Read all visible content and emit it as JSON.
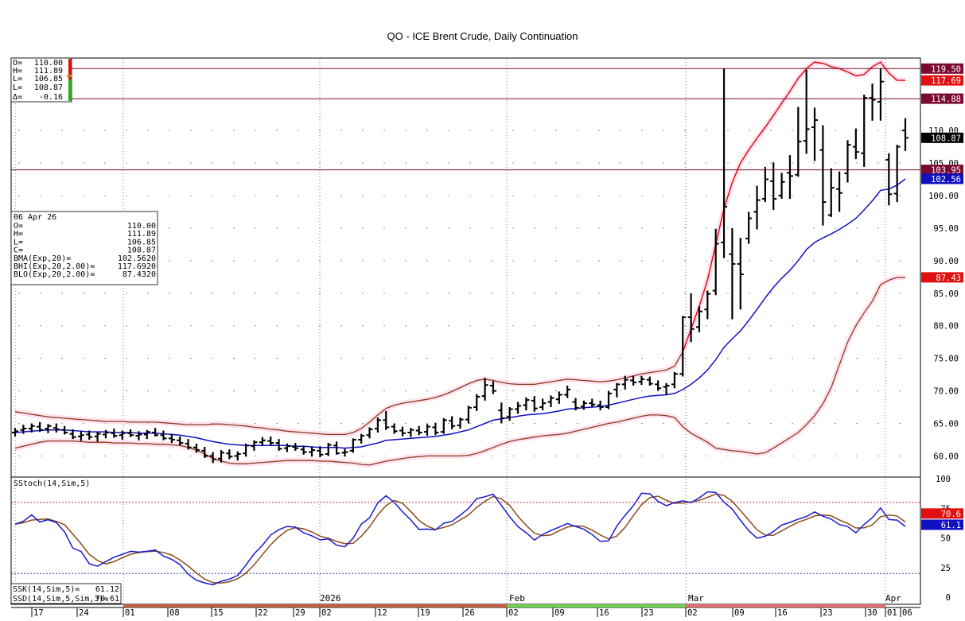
{
  "title": "QO - ICE Brent Crude, Daily Continuation",
  "ohlc_box": {
    "o_label": "O=",
    "o": "110.00",
    "h_label": "H=",
    "h": "111.89",
    "l1_label": "L=",
    "l1": "106.85",
    "l2_label": "L=",
    "l2": "108.87",
    "d_label": "Δ=",
    "d": "-0.16"
  },
  "info_box": {
    "date": "06 Apr 26",
    "rows": [
      {
        "label": "O=",
        "value": "110.00"
      },
      {
        "label": "H=",
        "value": "111.89"
      },
      {
        "label": "L=",
        "value": "106.85"
      },
      {
        "label": "C=",
        "value": "108.87"
      },
      {
        "label": "BMA(Exp,20)=",
        "value": "102.5620"
      },
      {
        "label": "BHI(Exp,20,2.00)=",
        "value": "117.6920"
      },
      {
        "label": "BLO(Exp,20,2.00)=",
        "value": "87.4320"
      }
    ]
  },
  "stoch_box": {
    "label": "SStoch(14,Sim,5)",
    "ssk_label": "SSK(14,Sim,5)=",
    "ssk": "61.12",
    "ssd_label": "SSD(14,Sim,5,Sim,3)=",
    "ssd": "70.61"
  },
  "colors": {
    "bars": "#000000",
    "band_outer_early": "#8b3a1a",
    "band_upper_late": "#e01010",
    "ma": "#1010c0",
    "ssk": "#1a1ad0",
    "ssd": "#8b4a1a",
    "hline": "#7a0a30"
  },
  "price_tags": [
    {
      "value": "119.50",
      "bg": "#7a0a30"
    },
    {
      "value": "117.69",
      "bg": "#e01010"
    },
    {
      "value": "114.88",
      "bg": "#7a0a30"
    },
    {
      "value": "108.87",
      "bg": "#000000"
    },
    {
      "value": "103.95",
      "bg": "#7a0a30"
    },
    {
      "value": "102.56",
      "bg": "#1010c0"
    },
    {
      "value": "87.43",
      "bg": "#e01010"
    }
  ],
  "stoch_tags": [
    {
      "value": "70.6",
      "bg": "#e01010"
    },
    {
      "value": "61.1",
      "bg": "#1010c0"
    }
  ],
  "y_ticks": [
    "110.00",
    "105.00",
    "100.00",
    "95.00",
    "90.00",
    "85.00",
    "80.00",
    "75.00",
    "70.00",
    "65.00",
    "60.00"
  ],
  "stoch_ticks": [
    "100",
    "75",
    "50",
    "25",
    "0"
  ],
  "x_labels": [
    "17",
    "24",
    "01",
    "08",
    "15",
    "22",
    "29",
    "02",
    "12",
    "19",
    "26",
    "02",
    "09",
    "16",
    "23",
    "02",
    "09",
    "16",
    "23",
    "30",
    "01",
    "06"
  ],
  "month_labels": [
    "2026",
    "Feb",
    "Mar",
    "Apr"
  ],
  "chart_data": {
    "type": "ohlc",
    "ylim": [
      57,
      121
    ],
    "hlines": [
      119.5,
      114.88,
      103.95
    ],
    "bars": [
      [
        63.6,
        64.3,
        63.0,
        63.8
      ],
      [
        64.0,
        64.8,
        63.4,
        64.2
      ],
      [
        64.2,
        65.0,
        63.6,
        64.6
      ],
      [
        64.5,
        65.2,
        63.7,
        64.0
      ],
      [
        64.2,
        64.9,
        63.5,
        64.6
      ],
      [
        64.3,
        65.0,
        63.6,
        64.1
      ],
      [
        64.0,
        64.6,
        63.3,
        63.6
      ],
      [
        63.4,
        64.1,
        62.6,
        62.9
      ],
      [
        63.0,
        63.8,
        62.3,
        63.2
      ],
      [
        63.3,
        63.9,
        62.5,
        62.9
      ],
      [
        63.0,
        63.7,
        62.2,
        63.4
      ],
      [
        63.3,
        64.0,
        62.7,
        63.6
      ],
      [
        63.5,
        64.2,
        62.8,
        63.1
      ],
      [
        63.2,
        63.9,
        62.5,
        63.5
      ],
      [
        63.5,
        64.1,
        62.9,
        63.2
      ],
      [
        63.1,
        63.8,
        62.4,
        63.3
      ],
      [
        63.3,
        64.0,
        62.6,
        63.7
      ],
      [
        63.6,
        64.3,
        63.0,
        63.2
      ],
      [
        63.2,
        63.9,
        62.4,
        62.7
      ],
      [
        62.7,
        63.4,
        62.0,
        62.5
      ],
      [
        62.4,
        63.0,
        61.6,
        62.0
      ],
      [
        61.9,
        62.6,
        61.0,
        61.3
      ],
      [
        61.3,
        61.9,
        60.5,
        60.9
      ],
      [
        60.8,
        61.4,
        59.7,
        60.0
      ],
      [
        60.0,
        60.6,
        58.9,
        59.5
      ],
      [
        59.6,
        60.9,
        59.0,
        60.5
      ],
      [
        60.4,
        61.0,
        59.5,
        59.9
      ],
      [
        60.0,
        60.7,
        59.3,
        60.3
      ],
      [
        60.4,
        61.9,
        59.9,
        61.6
      ],
      [
        61.5,
        62.4,
        60.8,
        62.1
      ],
      [
        62.1,
        62.9,
        61.5,
        62.4
      ],
      [
        62.3,
        63.0,
        61.7,
        62.0
      ],
      [
        62.0,
        62.6,
        60.8,
        61.1
      ],
      [
        61.2,
        61.9,
        60.6,
        61.5
      ],
      [
        61.4,
        62.0,
        60.8,
        61.2
      ],
      [
        61.0,
        61.6,
        60.2,
        60.6
      ],
      [
        60.6,
        61.4,
        59.9,
        60.9
      ],
      [
        60.8,
        61.5,
        59.8,
        60.2
      ],
      [
        60.3,
        62.0,
        60.0,
        61.7
      ],
      [
        61.6,
        62.2,
        60.2,
        60.4
      ],
      [
        60.5,
        61.1,
        59.9,
        60.6
      ],
      [
        60.8,
        62.7,
        60.5,
        62.5
      ],
      [
        62.5,
        63.4,
        61.9,
        63.1
      ],
      [
        63.2,
        64.4,
        62.7,
        64.1
      ],
      [
        64.2,
        65.9,
        63.6,
        65.5
      ],
      [
        65.5,
        66.9,
        64.0,
        64.4
      ],
      [
        64.5,
        65.0,
        63.4,
        63.8
      ],
      [
        63.9,
        64.5,
        63.0,
        63.5
      ],
      [
        63.6,
        64.3,
        62.9,
        64.0
      ],
      [
        63.9,
        64.6,
        63.2,
        63.6
      ],
      [
        63.7,
        64.9,
        63.1,
        64.5
      ],
      [
        64.4,
        65.1,
        63.2,
        63.6
      ],
      [
        63.7,
        65.8,
        63.4,
        65.5
      ],
      [
        65.4,
        66.1,
        64.1,
        64.6
      ],
      [
        64.7,
        65.9,
        64.2,
        65.6
      ],
      [
        65.6,
        67.7,
        65.0,
        67.4
      ],
      [
        67.5,
        69.5,
        66.9,
        69.1
      ],
      [
        69.2,
        72.0,
        68.5,
        70.9
      ],
      [
        70.8,
        71.5,
        69.5,
        70.0
      ],
      [
        67.0,
        68.2,
        65.0,
        65.8
      ],
      [
        66.0,
        67.5,
        65.4,
        67.2
      ],
      [
        67.2,
        68.3,
        66.5,
        67.7
      ],
      [
        67.8,
        69.0,
        67.0,
        68.6
      ],
      [
        68.5,
        69.2,
        66.8,
        67.3
      ],
      [
        67.5,
        68.8,
        67.0,
        68.1
      ],
      [
        68.3,
        69.3,
        67.5,
        68.9
      ],
      [
        68.7,
        69.9,
        68.0,
        69.4
      ],
      [
        69.4,
        70.8,
        68.9,
        70.2
      ],
      [
        68.3,
        68.9,
        67.0,
        67.4
      ],
      [
        67.6,
        68.5,
        67.1,
        68.1
      ],
      [
        68.1,
        68.8,
        67.5,
        67.9
      ],
      [
        67.8,
        68.5,
        67.0,
        67.5
      ],
      [
        67.5,
        70.0,
        67.2,
        69.6
      ],
      [
        70.2,
        71.2,
        69.0,
        71.0
      ],
      [
        71.0,
        72.3,
        70.2,
        71.7
      ],
      [
        71.6,
        72.3,
        70.8,
        71.3
      ],
      [
        71.4,
        72.3,
        70.9,
        71.8
      ],
      [
        71.7,
        72.2,
        70.8,
        71.1
      ],
      [
        71.0,
        71.6,
        70.0,
        70.4
      ],
      [
        70.6,
        71.2,
        69.4,
        70.8
      ],
      [
        71.0,
        72.9,
        70.4,
        72.6
      ],
      [
        72.6,
        81.5,
        72.2,
        81.3
      ],
      [
        81.3,
        85.0,
        77.5,
        79.5
      ],
      [
        79.8,
        83.0,
        79.0,
        82.2
      ],
      [
        82.5,
        85.4,
        81.0,
        84.9
      ],
      [
        85.4,
        94.9,
        84.7,
        92.6
      ],
      [
        92.8,
        119.5,
        90.4,
        98.3
      ],
      [
        91.0,
        95.0,
        81.0,
        89.5
      ],
      [
        89.5,
        93.5,
        82.5,
        87.9
      ],
      [
        93.4,
        97.5,
        92.6,
        96.5
      ],
      [
        97.5,
        101.5,
        94.8,
        99.3
      ],
      [
        99.5,
        104.4,
        99.0,
        102.5
      ],
      [
        102.2,
        105.1,
        97.8,
        99.5
      ],
      [
        100.0,
        103.5,
        99.5,
        102.1
      ],
      [
        103.5,
        106.2,
        99.5,
        103.0
      ],
      [
        103.2,
        113.6,
        102.9,
        108.3
      ],
      [
        108.4,
        119.3,
        106.4,
        110.2
      ],
      [
        110.5,
        113.5,
        105.3,
        111.6
      ],
      [
        107.0,
        110.8,
        95.4,
        99.0
      ],
      [
        97.0,
        104.2,
        96.7,
        101.2
      ],
      [
        101.0,
        103.7,
        97.5,
        100.4
      ],
      [
        103.4,
        108.5,
        102.0,
        107.8
      ],
      [
        107.5,
        110.3,
        105.6,
        106.7
      ],
      [
        106.5,
        115.5,
        104.4,
        115.0
      ],
      [
        115.0,
        117.2,
        111.5,
        114.7
      ],
      [
        114.4,
        119.5,
        111.5,
        117.5
      ],
      [
        105.5,
        106.5,
        98.5,
        100.2
      ],
      [
        100.3,
        107.8,
        99.0,
        107.5
      ],
      [
        110.0,
        111.89,
        106.85,
        108.87
      ]
    ],
    "bma": [
      63.6,
      63.7,
      63.8,
      63.9,
      64.0,
      64.0,
      64.0,
      63.9,
      63.8,
      63.7,
      63.7,
      63.7,
      63.6,
      63.6,
      63.6,
      63.5,
      63.5,
      63.5,
      63.4,
      63.3,
      63.2,
      63.0,
      62.8,
      62.5,
      62.2,
      62.0,
      61.8,
      61.7,
      61.6,
      61.6,
      61.6,
      61.6,
      61.6,
      61.6,
      61.5,
      61.5,
      61.4,
      61.3,
      61.3,
      61.3,
      61.2,
      61.3,
      61.4,
      61.7,
      62.0,
      62.4,
      62.5,
      62.6,
      62.7,
      62.8,
      62.9,
      63.0,
      63.2,
      63.4,
      63.7,
      64.0,
      64.5,
      65.0,
      65.5,
      65.7,
      65.9,
      66.1,
      66.3,
      66.4,
      66.5,
      66.7,
      66.9,
      67.2,
      67.3,
      67.4,
      67.5,
      67.6,
      67.8,
      68.1,
      68.4,
      68.7,
      69.0,
      69.2,
      69.3,
      69.4,
      69.6,
      70.2,
      71.0,
      72.0,
      73.2,
      74.8,
      76.7,
      78.0,
      79.2,
      80.8,
      82.5,
      84.3,
      85.9,
      87.3,
      88.5,
      90.0,
      91.7,
      92.8,
      93.5,
      94.1,
      94.8,
      95.6,
      96.5,
      97.8,
      99.2,
      100.8,
      101.0,
      101.6,
      102.56
    ],
    "bhi": [
      66.8,
      66.6,
      66.4,
      66.2,
      66.0,
      65.9,
      65.8,
      65.7,
      65.6,
      65.5,
      65.4,
      65.3,
      65.3,
      65.3,
      65.2,
      65.2,
      65.2,
      65.2,
      65.1,
      65.0,
      64.9,
      64.8,
      64.8,
      64.8,
      64.9,
      64.9,
      64.8,
      64.7,
      64.6,
      64.4,
      64.3,
      64.1,
      64.0,
      63.8,
      63.7,
      63.6,
      63.5,
      63.4,
      63.3,
      63.3,
      63.3,
      63.6,
      64.2,
      65.2,
      66.3,
      67.3,
      67.8,
      68.1,
      68.3,
      68.5,
      68.7,
      69.0,
      69.4,
      69.9,
      70.5,
      71.1,
      71.6,
      71.8,
      71.6,
      71.3,
      71.1,
      71.0,
      71.0,
      71.0,
      71.2,
      71.4,
      71.6,
      71.8,
      71.7,
      71.6,
      71.5,
      71.4,
      71.5,
      71.7,
      72.0,
      72.3,
      72.6,
      72.8,
      73.0,
      73.2,
      73.8,
      76.0,
      79.5,
      83.0,
      87.0,
      92.5,
      98.0,
      102.0,
      105.0,
      107.0,
      108.8,
      110.5,
      112.3,
      114.2,
      116.0,
      118.0,
      119.5,
      120.5,
      120.3,
      119.8,
      119.5,
      119.0,
      118.4,
      118.6,
      119.8,
      120.5,
      118.8,
      117.7,
      117.69
    ],
    "blo": [
      61.2,
      61.5,
      61.8,
      62.1,
      62.3,
      62.3,
      62.3,
      62.3,
      62.2,
      62.1,
      62.1,
      62.1,
      62.0,
      62.0,
      62.0,
      61.9,
      61.9,
      61.8,
      61.8,
      61.7,
      61.6,
      61.3,
      60.9,
      60.3,
      59.6,
      59.2,
      58.9,
      58.8,
      58.8,
      58.9,
      59.0,
      59.1,
      59.2,
      59.3,
      59.3,
      59.3,
      59.3,
      59.2,
      59.2,
      59.1,
      59.0,
      58.9,
      58.7,
      58.6,
      58.9,
      59.2,
      59.4,
      59.6,
      59.8,
      59.9,
      60.0,
      60.0,
      60.0,
      60.0,
      60.0,
      60.1,
      60.4,
      60.8,
      61.3,
      61.8,
      62.2,
      62.5,
      62.7,
      62.9,
      63.1,
      63.2,
      63.3,
      63.5,
      63.8,
      64.1,
      64.4,
      64.7,
      65.0,
      65.2,
      65.5,
      65.8,
      66.1,
      66.3,
      66.3,
      66.2,
      65.9,
      64.5,
      63.5,
      62.8,
      62.1,
      61.2,
      61.0,
      60.8,
      60.7,
      60.5,
      60.3,
      60.5,
      61.2,
      62.0,
      62.8,
      63.6,
      64.8,
      66.2,
      68.0,
      70.5,
      74.0,
      77.5,
      80.0,
      82.0,
      83.8,
      86.3,
      87.0,
      87.43,
      87.43
    ]
  }
}
